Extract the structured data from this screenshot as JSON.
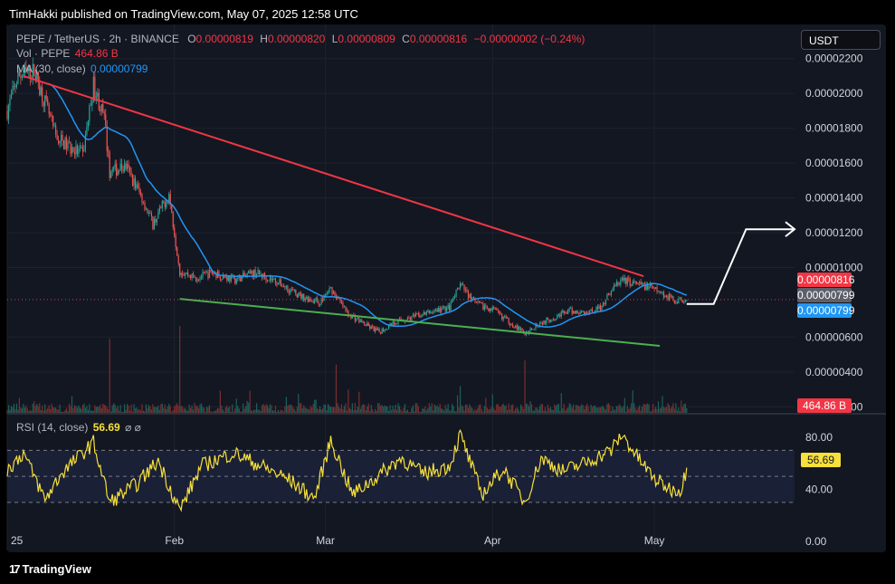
{
  "header": {
    "publisher": "TimHakki published on TradingView.com, May 07, 2025 12:58 UTC"
  },
  "legend": {
    "symbol": "PEPE / TetherUS · 2h · BINANCE",
    "o_label": "O",
    "o_value": "0.00000819",
    "h_label": "H",
    "h_value": "0.00000820",
    "l_label": "L",
    "l_value": "0.00000809",
    "c_label": "C",
    "c_value": "0.00000816",
    "change": "−0.00000002 (−0.24%)",
    "vol_label": "Vol · PEPE",
    "vol_value": "464.86 B",
    "ma_label": "MA (30, close)",
    "ma_value": "0.00000799",
    "rsi_label": "RSI (14, close)",
    "rsi_value": "56.69",
    "rsi_icons": "⌀ ⌀"
  },
  "currency_button": "USDT",
  "price_tags": {
    "close": "0.00000816",
    "ma_gray": "0.00000799",
    "ma_blue": "0.00000799",
    "volume": "464.86 B",
    "rsi": "56.69"
  },
  "footer": {
    "brand": "TradingView",
    "logo": "17"
  },
  "colors": {
    "background": "#131722",
    "up": "#26a69a",
    "down": "#ef5350",
    "ma": "#2196f3",
    "resistance": "#f23645",
    "support": "#4caf50",
    "rsi": "#f7e03a",
    "projection": "#ffffff"
  },
  "chart_data": [
    {
      "type": "candlestick",
      "title": "PEPE / TetherUS · 2h · BINANCE",
      "y_ticks": [
        "0.00000200",
        "0.00000400",
        "0.00000600",
        "0.00001000",
        "0.00001200",
        "0.00001400",
        "0.00001600",
        "0.00001800",
        "0.00002000",
        "0.00002200"
      ],
      "y_tick_values": [
        2e-06,
        4e-06,
        6e-06,
        1e-05,
        1.2e-05,
        1.4e-05,
        1.6e-05,
        1.8e-05,
        2e-05,
        2.2e-05
      ],
      "ylim": [
        1.6e-06,
        2.24e-05
      ],
      "x_ticks": [
        "25",
        "Feb",
        "Mar",
        "Apr",
        "May"
      ],
      "x_tick_dates": [
        "2025-01-01",
        "2025-02-01",
        "2025-03-01",
        "2025-04-01",
        "2025-05-01"
      ],
      "xlim": [
        "2025-01-01",
        "2025-05-27"
      ],
      "grid": true,
      "price_path": [
        [
          "2025-01-01",
          1.9e-05
        ],
        [
          "2025-01-03",
          2.1e-05
        ],
        [
          "2025-01-06",
          2.13e-05
        ],
        [
          "2025-01-08",
          1.95e-05
        ],
        [
          "2025-01-10",
          1.75e-05
        ],
        [
          "2025-01-13",
          1.68e-05
        ],
        [
          "2025-01-15",
          1.65e-05
        ],
        [
          "2025-01-17",
          2.05e-05
        ],
        [
          "2025-01-19",
          1.85e-05
        ],
        [
          "2025-01-20",
          1.55e-05
        ],
        [
          "2025-01-23",
          1.58e-05
        ],
        [
          "2025-01-26",
          1.4e-05
        ],
        [
          "2025-01-28",
          1.25e-05
        ],
        [
          "2025-01-31",
          1.42e-05
        ],
        [
          "2025-02-02",
          9.8e-06
        ],
        [
          "2025-02-05",
          9.4e-06
        ],
        [
          "2025-02-08",
          9.7e-06
        ],
        [
          "2025-02-12",
          9.3e-06
        ],
        [
          "2025-02-16",
          9.7e-06
        ],
        [
          "2025-02-20",
          9.2e-06
        ],
        [
          "2025-02-24",
          8.4e-06
        ],
        [
          "2025-02-28",
          8e-06
        ],
        [
          "2025-03-02",
          8.8e-06
        ],
        [
          "2025-03-05",
          7.4e-06
        ],
        [
          "2025-03-09",
          6.6e-06
        ],
        [
          "2025-03-11",
          6.3e-06
        ],
        [
          "2025-03-14",
          6.9e-06
        ],
        [
          "2025-03-18",
          7.2e-06
        ],
        [
          "2025-03-21",
          7.5e-06
        ],
        [
          "2025-03-24",
          7.7e-06
        ],
        [
          "2025-03-26",
          9e-06
        ],
        [
          "2025-03-29",
          7.9e-06
        ],
        [
          "2025-04-01",
          7.6e-06
        ],
        [
          "2025-04-04",
          6.9e-06
        ],
        [
          "2025-04-07",
          6.2e-06
        ],
        [
          "2025-04-09",
          6.7e-06
        ],
        [
          "2025-04-12",
          7.1e-06
        ],
        [
          "2025-04-15",
          7.5e-06
        ],
        [
          "2025-04-18",
          7.4e-06
        ],
        [
          "2025-04-21",
          7.7e-06
        ],
        [
          "2025-04-23",
          8.7e-06
        ],
        [
          "2025-04-25",
          9.3e-06
        ],
        [
          "2025-04-28",
          9e-06
        ],
        [
          "2025-04-30",
          8.9e-06
        ],
        [
          "2025-05-03",
          8.4e-06
        ],
        [
          "2025-05-05",
          8.1e-06
        ],
        [
          "2025-05-07",
          8.2e-06
        ]
      ],
      "resistance_line": [
        [
          "2025-01-04",
          2.1e-05
        ],
        [
          "2025-04-29",
          9.5e-06
        ]
      ],
      "support_line": [
        [
          "2025-02-02",
          8.2e-06
        ],
        [
          "2025-05-02",
          5.5e-06
        ]
      ],
      "projection": [
        [
          "2025-05-07",
          7.9e-06
        ],
        [
          "2025-05-12",
          7.9e-06
        ],
        [
          "2025-05-18",
          1.22e-05
        ],
        [
          "2025-05-27",
          1.22e-05
        ]
      ],
      "volume_spikes": [
        [
          "2025-01-20",
          0.85
        ],
        [
          "2025-02-02",
          1.0
        ],
        [
          "2025-03-03",
          0.55
        ],
        [
          "2025-04-07",
          0.6
        ],
        [
          "2025-03-26",
          0.3
        ]
      ],
      "legend_position": "top-left"
    },
    {
      "type": "line",
      "title": "RSI (14, close)",
      "y_ticks": [
        "0.00",
        "40.00",
        "80.00"
      ],
      "y_tick_values": [
        0,
        40,
        80
      ],
      "ylim": [
        -7,
        96
      ],
      "band": [
        30,
        70
      ],
      "rsi_path": [
        [
          "2025-01-01",
          55
        ],
        [
          "2025-01-04",
          68
        ],
        [
          "2025-01-08",
          32
        ],
        [
          "2025-01-11",
          52
        ],
        [
          "2025-01-17",
          76
        ],
        [
          "2025-01-20",
          30
        ],
        [
          "2025-01-25",
          44
        ],
        [
          "2025-01-29",
          62
        ],
        [
          "2025-02-02",
          24
        ],
        [
          "2025-02-06",
          58
        ],
        [
          "2025-02-12",
          68
        ],
        [
          "2025-02-17",
          58
        ],
        [
          "2025-02-22",
          48
        ],
        [
          "2025-02-27",
          33
        ],
        [
          "2025-03-02",
          78
        ],
        [
          "2025-03-06",
          36
        ],
        [
          "2025-03-10",
          48
        ],
        [
          "2025-03-15",
          64
        ],
        [
          "2025-03-19",
          52
        ],
        [
          "2025-03-24",
          58
        ],
        [
          "2025-03-26",
          82
        ],
        [
          "2025-03-30",
          36
        ],
        [
          "2025-04-03",
          56
        ],
        [
          "2025-04-07",
          30
        ],
        [
          "2025-04-10",
          64
        ],
        [
          "2025-04-14",
          54
        ],
        [
          "2025-04-18",
          60
        ],
        [
          "2025-04-23",
          70
        ],
        [
          "2025-04-25",
          82
        ],
        [
          "2025-04-28",
          64
        ],
        [
          "2025-05-01",
          48
        ],
        [
          "2025-05-04",
          40
        ],
        [
          "2025-05-06",
          40
        ],
        [
          "2025-05-07",
          56.69
        ]
      ]
    }
  ]
}
